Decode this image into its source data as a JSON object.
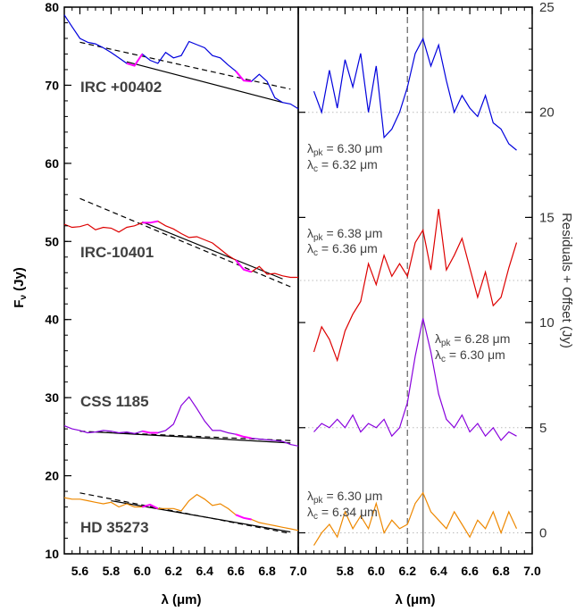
{
  "chart_data": [
    {
      "type": "line",
      "panel": "left",
      "xlabel": "λ (μm)",
      "ylabel": "Fν (Jy)",
      "xlim": [
        5.5,
        7.0
      ],
      "ylim": [
        10,
        80
      ],
      "xticks": [
        "5.6",
        "5.8",
        "6.0",
        "6.2",
        "6.4",
        "6.6",
        "6.8",
        "7.0"
      ],
      "yticks": [
        "10",
        "20",
        "30",
        "40",
        "50",
        "60",
        "70",
        "80"
      ],
      "series": [
        {
          "name": "IRC +00402",
          "color": "#0000dd",
          "x": [
            5.5,
            5.55,
            5.6,
            5.65,
            5.7,
            5.75,
            5.8,
            5.85,
            5.9,
            5.95,
            6.0,
            6.05,
            6.1,
            6.15,
            6.2,
            6.25,
            6.3,
            6.35,
            6.4,
            6.45,
            6.5,
            6.55,
            6.6,
            6.65,
            6.7,
            6.75,
            6.8,
            6.85,
            6.9,
            6.95,
            7.0
          ],
          "y": [
            79,
            77.5,
            76,
            75.5,
            75.3,
            74.8,
            74.2,
            73.5,
            72.8,
            72.5,
            74,
            73.2,
            72.8,
            74.2,
            73.5,
            73.8,
            75.6,
            75.2,
            74.8,
            73.8,
            73.5,
            72.6,
            71.8,
            70.6,
            70.5,
            71.4,
            70.5,
            68.4,
            67.8,
            67.6,
            67.0
          ]
        },
        {
          "name": "IRC-10401",
          "color": "#dd0000",
          "x": [
            5.5,
            5.55,
            5.6,
            5.65,
            5.7,
            5.75,
            5.8,
            5.85,
            5.9,
            5.95,
            6.0,
            6.05,
            6.1,
            6.15,
            6.2,
            6.25,
            6.3,
            6.35,
            6.4,
            6.45,
            6.5,
            6.55,
            6.6,
            6.65,
            6.7,
            6.75,
            6.8,
            6.85,
            6.9,
            6.95,
            7.0
          ],
          "y": [
            52.2,
            51.8,
            51.9,
            52.2,
            51.5,
            51.8,
            51.7,
            51.2,
            51.8,
            52.0,
            52.4,
            52.4,
            52.6,
            52.0,
            51.6,
            51.0,
            50.5,
            50.6,
            50.2,
            49.8,
            49.0,
            48.2,
            47.6,
            46.4,
            46.1,
            46.8,
            45.8,
            45.9,
            45.6,
            45.4,
            45.4
          ]
        },
        {
          "name": "CSS 1185",
          "color": "#8800dd",
          "x": [
            5.5,
            5.55,
            5.6,
            5.65,
            5.7,
            5.75,
            5.8,
            5.85,
            5.9,
            5.95,
            6.0,
            6.05,
            6.1,
            6.15,
            6.2,
            6.25,
            6.3,
            6.35,
            6.4,
            6.45,
            6.5,
            6.55,
            6.6,
            6.65,
            6.7,
            6.75,
            6.8,
            6.85,
            6.9,
            6.95,
            7.0
          ],
          "y": [
            26.4,
            26.0,
            25.8,
            25.5,
            25.6,
            25.8,
            25.7,
            25.5,
            25.6,
            25.4,
            25.7,
            25.5,
            25.5,
            25.8,
            26.6,
            29.0,
            30.1,
            28.6,
            27.0,
            25.8,
            25.8,
            25.5,
            25.3,
            25.0,
            24.8,
            24.7,
            24.6,
            24.5,
            24.4,
            24.0,
            23.8
          ]
        },
        {
          "name": "HD 35273",
          "color": "#ee8800",
          "x": [
            5.5,
            5.55,
            5.6,
            5.65,
            5.7,
            5.75,
            5.8,
            5.85,
            5.9,
            5.95,
            6.0,
            6.05,
            6.1,
            6.15,
            6.2,
            6.25,
            6.3,
            6.35,
            6.4,
            6.45,
            6.5,
            6.55,
            6.6,
            6.65,
            6.7,
            6.75,
            6.8,
            6.85,
            6.9,
            6.95,
            7.0
          ],
          "y": [
            17.2,
            17.0,
            17.0,
            16.8,
            16.6,
            16.4,
            16.6,
            16.0,
            16.4,
            16.0,
            16.0,
            16.3,
            15.8,
            15.8,
            15.8,
            15.5,
            16.8,
            17.6,
            17.0,
            16.2,
            16.4,
            15.8,
            15.0,
            14.6,
            14.4,
            14.0,
            13.8,
            13.6,
            13.4,
            13.2,
            13.0
          ]
        }
      ],
      "continuum": [
        {
          "x": [
            5.6,
            6.95
          ],
          "y": [
            75.5,
            69.5
          ],
          "style": "dashed"
        },
        {
          "x": [
            5.9,
            6.9
          ],
          "y": [
            73.0,
            67.8
          ],
          "style": "solid"
        },
        {
          "x": [
            5.6,
            6.95
          ],
          "y": [
            55.5,
            44.2
          ],
          "style": "dashed"
        },
        {
          "x": [
            6.0,
            6.9
          ],
          "y": [
            52.5,
            45.2
          ],
          "style": "solid"
        },
        {
          "x": [
            5.6,
            6.95
          ],
          "y": [
            25.7,
            24.5
          ],
          "style": "dashed"
        },
        {
          "x": [
            5.7,
            6.95
          ],
          "y": [
            25.6,
            24.2
          ],
          "style": "solid"
        },
        {
          "x": [
            5.6,
            6.95
          ],
          "y": [
            17.8,
            12.6
          ],
          "style": "dashed"
        },
        {
          "x": [
            5.8,
            6.95
          ],
          "y": [
            16.8,
            12.8
          ],
          "style": "solid"
        }
      ],
      "labels": [
        "IRC +00402",
        "IRC-10401",
        "CSS 1185",
        "HD 35273"
      ]
    },
    {
      "type": "line",
      "panel": "right",
      "xlabel": "λ (μm)",
      "ylabel": "Residuals + Offset (Jy)",
      "xlim": [
        5.5,
        7.0
      ],
      "ylim": [
        -1,
        25
      ],
      "xticks": [
        "5.8",
        "6.0",
        "6.2",
        "6.4",
        "6.6",
        "6.8",
        "7.0"
      ],
      "yticks": [
        "0",
        "5",
        "10",
        "15",
        "20",
        "25"
      ],
      "offsets": [
        20,
        12,
        5,
        0
      ],
      "vlines": [
        {
          "x": 6.2,
          "style": "dashed"
        },
        {
          "x": 6.3,
          "style": "solid"
        }
      ],
      "series": [
        {
          "name": "IRC +00402",
          "color": "#0000dd",
          "x": [
            5.6,
            5.65,
            5.7,
            5.75,
            5.8,
            5.85,
            5.9,
            5.95,
            6.0,
            6.05,
            6.1,
            6.15,
            6.2,
            6.25,
            6.3,
            6.35,
            6.4,
            6.45,
            6.5,
            6.55,
            6.6,
            6.65,
            6.7,
            6.75,
            6.8,
            6.85,
            6.9
          ],
          "y": [
            21,
            20,
            22,
            20.2,
            22.5,
            21.2,
            22.8,
            20,
            22.2,
            18.8,
            19.2,
            20,
            21.2,
            22.8,
            23.5,
            22.2,
            23.2,
            21.5,
            20,
            20.8,
            20.2,
            19.8,
            20.8,
            19.5,
            19.2,
            18.5,
            18.2
          ]
        },
        {
          "name": "IRC-10401",
          "color": "#dd0000",
          "x": [
            5.6,
            5.65,
            5.7,
            5.75,
            5.8,
            5.85,
            5.9,
            5.95,
            6.0,
            6.05,
            6.1,
            6.15,
            6.2,
            6.25,
            6.3,
            6.35,
            6.4,
            6.45,
            6.5,
            6.55,
            6.6,
            6.65,
            6.7,
            6.75,
            6.8,
            6.85,
            6.9
          ],
          "y": [
            8.6,
            9.8,
            9.2,
            8.2,
            9.6,
            10.4,
            11.0,
            12.8,
            11.8,
            13.2,
            12.2,
            12.8,
            12.2,
            13.8,
            14.4,
            12.5,
            15.4,
            12.5,
            13.2,
            14.0,
            12.6,
            11.2,
            12.4,
            10.8,
            11.2,
            12.6,
            13.8
          ]
        },
        {
          "name": "CSS 1185",
          "color": "#8800dd",
          "x": [
            5.6,
            5.65,
            5.7,
            5.75,
            5.8,
            5.85,
            5.9,
            5.95,
            6.0,
            6.05,
            6.1,
            6.15,
            6.2,
            6.25,
            6.3,
            6.35,
            6.4,
            6.45,
            6.5,
            6.55,
            6.6,
            6.65,
            6.7,
            6.75,
            6.8,
            6.85,
            6.9
          ],
          "y": [
            4.8,
            5.2,
            5.0,
            5.4,
            5.0,
            5.6,
            4.8,
            5.2,
            5.0,
            5.4,
            4.6,
            5.0,
            6.2,
            8.4,
            10.2,
            8.6,
            6.6,
            5.4,
            5.0,
            5.6,
            4.8,
            5.2,
            4.6,
            5.0,
            4.4,
            4.8,
            4.6
          ]
        },
        {
          "name": "HD 35273",
          "color": "#ee8800",
          "x": [
            5.6,
            5.65,
            5.7,
            5.75,
            5.8,
            5.85,
            5.9,
            5.95,
            6.0,
            6.05,
            6.1,
            6.15,
            6.2,
            6.25,
            6.3,
            6.35,
            6.4,
            6.45,
            6.5,
            6.55,
            6.6,
            6.65,
            6.7,
            6.75,
            6.8,
            6.85,
            6.9
          ],
          "y": [
            -0.6,
            0.0,
            0.4,
            -0.2,
            1.0,
            0.2,
            0.8,
            0.2,
            1.4,
            0.0,
            0.6,
            0.2,
            0.4,
            1.4,
            1.9,
            1.0,
            0.6,
            0.2,
            1.0,
            0.4,
            -0.2,
            0.6,
            0.2,
            1.0,
            0.0,
            1.0,
            0.2
          ]
        }
      ]
    }
  ],
  "annotations": [
    {
      "pk": "λpk = 6.30 μm",
      "pk_main": "λ",
      "pk_sub": "pk",
      "pk_val": " = 6.30 μm",
      "c_main": "λ",
      "c_sub": "c",
      "c_val": " = 6.32 μm"
    },
    {
      "pk_main": "λ",
      "pk_sub": "pk",
      "pk_val": " = 6.38 μm",
      "c_main": "λ",
      "c_sub": "c",
      "c_val": " = 6.36 μm"
    },
    {
      "pk_main": "λ",
      "pk_sub": "pk",
      "pk_val": " = 6.28 μm",
      "c_main": "λ",
      "c_sub": "c",
      "c_val": " = 6.30 μm"
    },
    {
      "pk_main": "λ",
      "pk_sub": "pk",
      "pk_val": " = 6.30 μm",
      "c_main": "λ",
      "c_sub": "c",
      "c_val": " = 6.34 μm"
    }
  ],
  "axis_titles": {
    "left_x": "λ (μm)",
    "right_x": "λ (μm)",
    "left_y_main": "F",
    "left_y_sub": "ν",
    "left_y_unit": " (Jy)",
    "right_y": "Residuals + Offset (Jy)"
  },
  "colors": {
    "blue": "#0000dd",
    "red": "#dd0000",
    "purple": "#8800dd",
    "orange": "#ee8800",
    "highlight": "#ff00ff"
  }
}
